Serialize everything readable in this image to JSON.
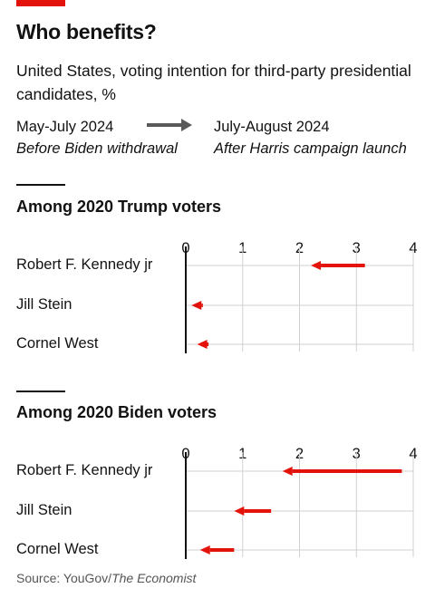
{
  "header": {
    "title": "Who benefits?",
    "subtitle": "United States, voting intention for third-party presidential candidates, %"
  },
  "legend": {
    "before_label": "May-July 2024",
    "before_note": "Before Biden withdrawal",
    "after_label": "July-August 2024",
    "after_note": "After Harris campaign launch"
  },
  "colors": {
    "arrow": "#e3120b",
    "legend_arrow": "#595959",
    "gridline": "#d0d0d0",
    "axis": "#121212"
  },
  "chart_data": [
    {
      "type": "arrow",
      "title": "Among 2020 Trump voters",
      "x_ticks": [
        "0",
        "1",
        "2",
        "3",
        "4"
      ],
      "xlim": [
        0,
        4
      ],
      "categories": [
        "Robert F. Kennedy jr",
        "Jill Stein",
        "Cornel West"
      ],
      "series": [
        {
          "name": "May-July 2024",
          "values": [
            3.15,
            0.3,
            0.4
          ]
        },
        {
          "name": "July-August 2024",
          "values": [
            2.2,
            0.1,
            0.2
          ]
        }
      ]
    },
    {
      "type": "arrow",
      "title": "Among 2020 Biden voters",
      "x_ticks": [
        "0",
        "1",
        "2",
        "3",
        "4"
      ],
      "xlim": [
        0,
        4
      ],
      "categories": [
        "Robert F. Kennedy jr",
        "Jill Stein",
        "Cornel West"
      ],
      "series": [
        {
          "name": "May-July 2024",
          "values": [
            3.8,
            1.5,
            0.85
          ]
        },
        {
          "name": "July-August 2024",
          "values": [
            1.7,
            0.85,
            0.25
          ]
        }
      ]
    }
  ],
  "source": {
    "prefix": "Source: YouGov/",
    "publication": "The Economist"
  }
}
